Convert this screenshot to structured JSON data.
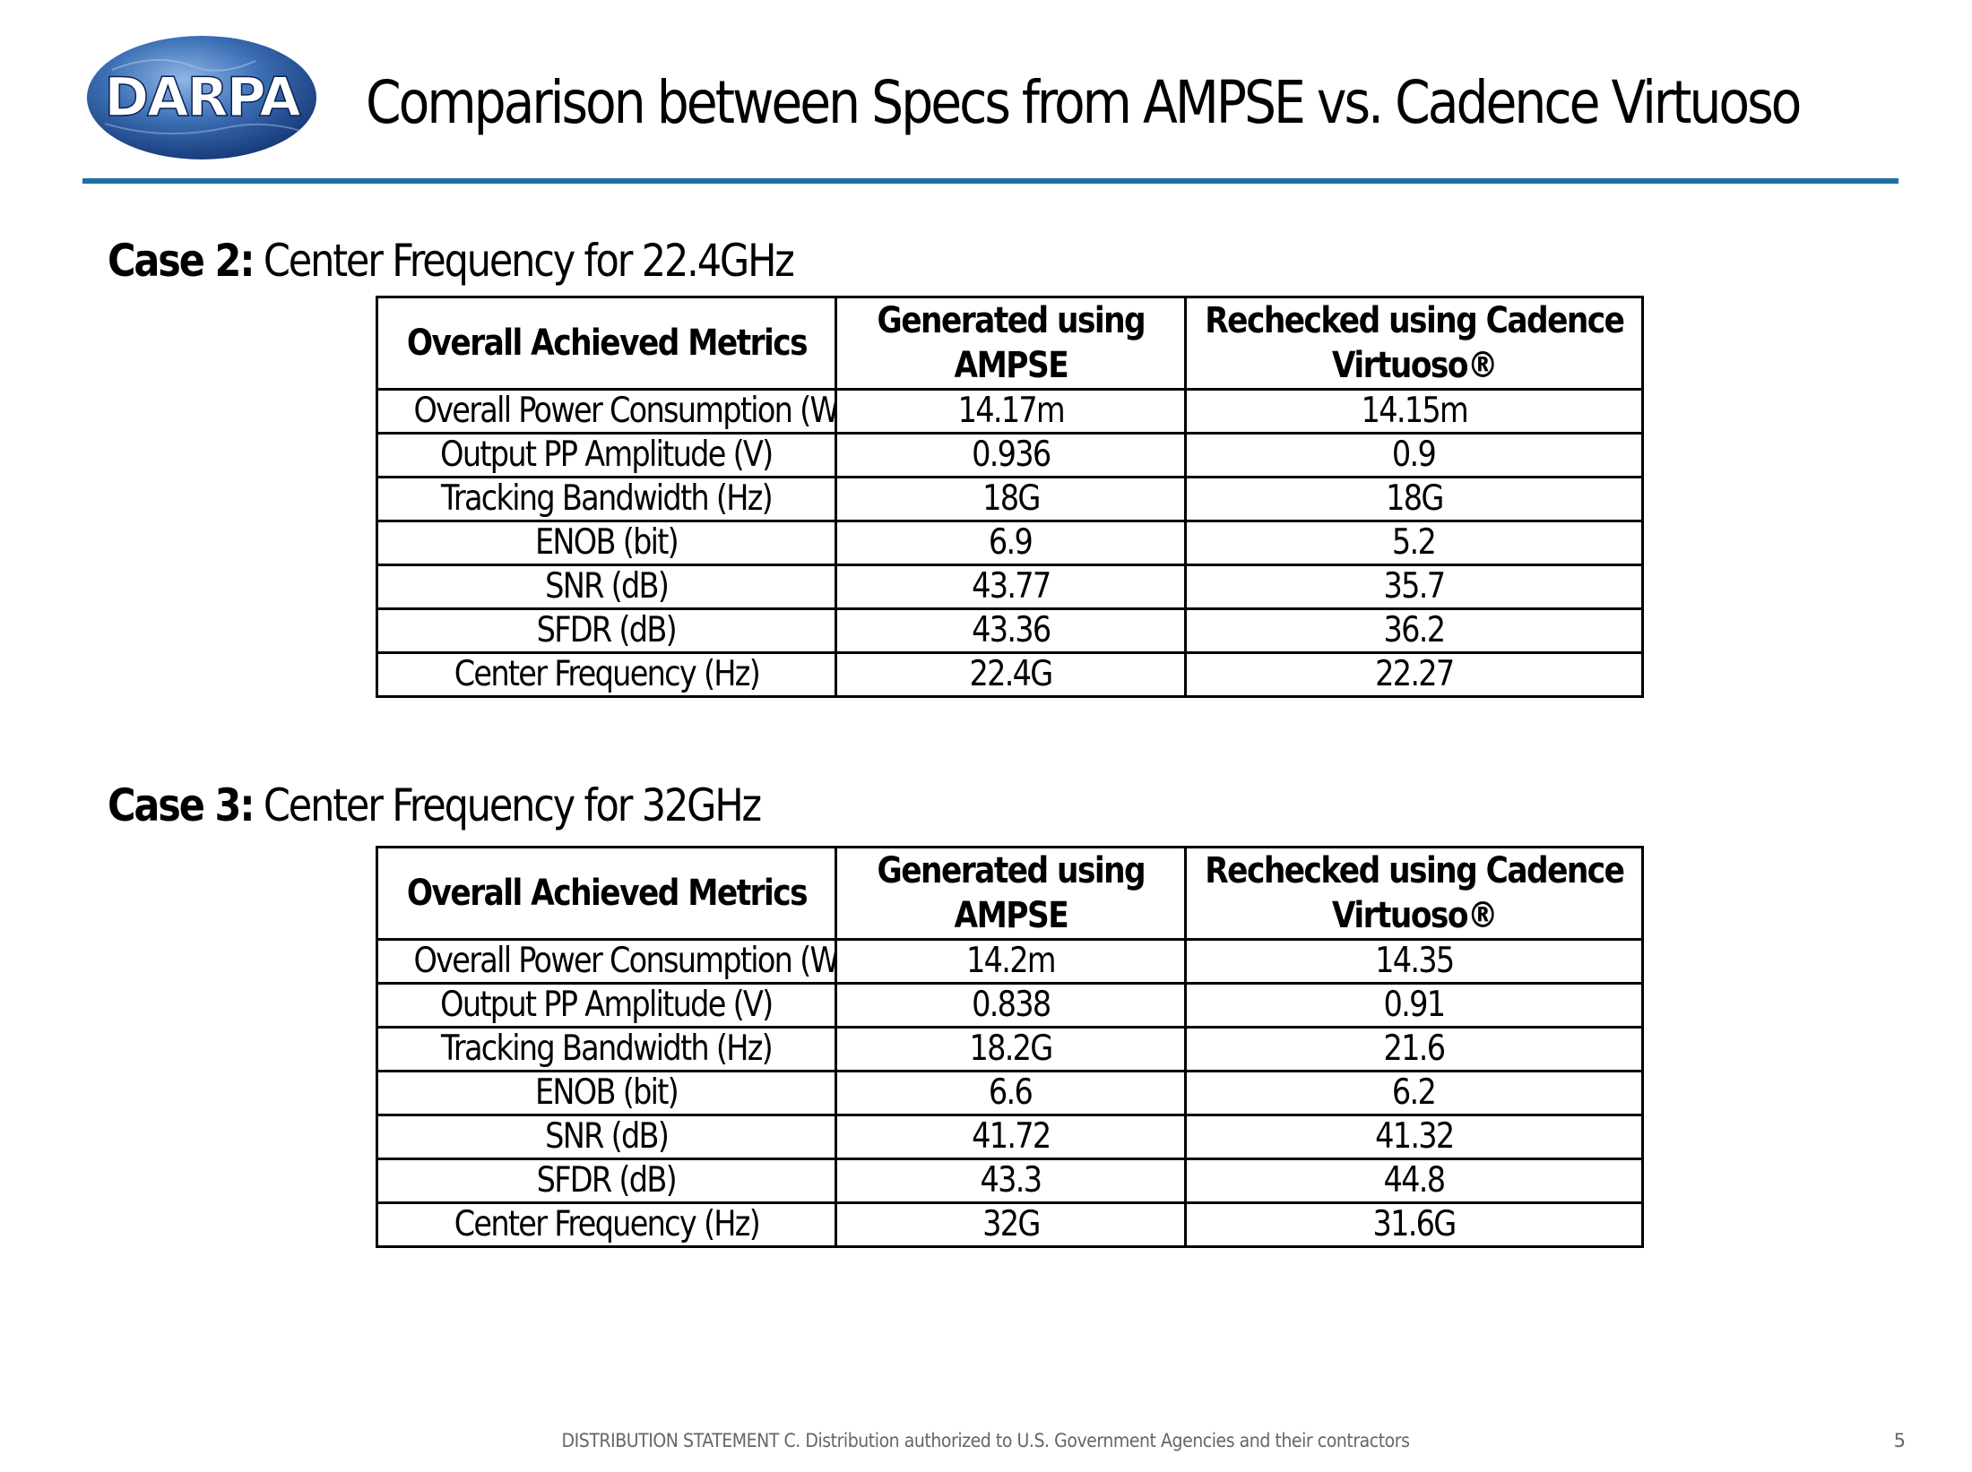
{
  "logo": {
    "text": "DARPA",
    "colors": {
      "globe_dark": "#0e2d6b",
      "globe_light": "#4f86c6",
      "text": "#ffffff"
    }
  },
  "header": {
    "title": "Comparison between Specs from AMPSE vs. Cadence Virtuoso",
    "rule_color": "#1d6fa3"
  },
  "case2": {
    "label": "Case 2:",
    "description": "Center Frequency for 22.4GHz",
    "columns": [
      "Overall Achieved Metrics",
      "Generated using AMPSE",
      "Rechecked using Cadence Virtuoso®"
    ],
    "rows": [
      [
        "Overall Power Consumption (W)",
        "14.17m",
        "14.15m"
      ],
      [
        "Output PP Amplitude (V)",
        "0.936",
        "0.9"
      ],
      [
        "Tracking Bandwidth (Hz)",
        "18G",
        "18G"
      ],
      [
        "ENOB (bit)",
        "6.9",
        "5.2"
      ],
      [
        "SNR (dB)",
        "43.77",
        "35.7"
      ],
      [
        "SFDR (dB)",
        "43.36",
        "36.2"
      ],
      [
        "Center Frequency (Hz)",
        "22.4G",
        "22.27"
      ]
    ]
  },
  "case3": {
    "label": "Case 3:",
    "description": "Center Frequency for 32GHz",
    "columns": [
      "Overall Achieved Metrics",
      "Generated using AMPSE",
      "Rechecked using Cadence Virtuoso®"
    ],
    "rows": [
      [
        "Overall Power Consumption (W)",
        "14.2m",
        "14.35"
      ],
      [
        "Output PP Amplitude (V)",
        "0.838",
        "0.91"
      ],
      [
        "Tracking Bandwidth (Hz)",
        "18.2G",
        "21.6"
      ],
      [
        "ENOB (bit)",
        "6.6",
        "6.2"
      ],
      [
        "SNR (dB)",
        "41.72",
        "41.32"
      ],
      [
        "SFDR (dB)",
        "43.3",
        "44.8"
      ],
      [
        "Center Frequency (Hz)",
        "32G",
        "31.6G"
      ]
    ]
  },
  "footer": {
    "distribution": "DISTRIBUTION STATEMENT C. Distribution authorized to U.S. Government Agencies and their contractors",
    "page_number": "5"
  }
}
